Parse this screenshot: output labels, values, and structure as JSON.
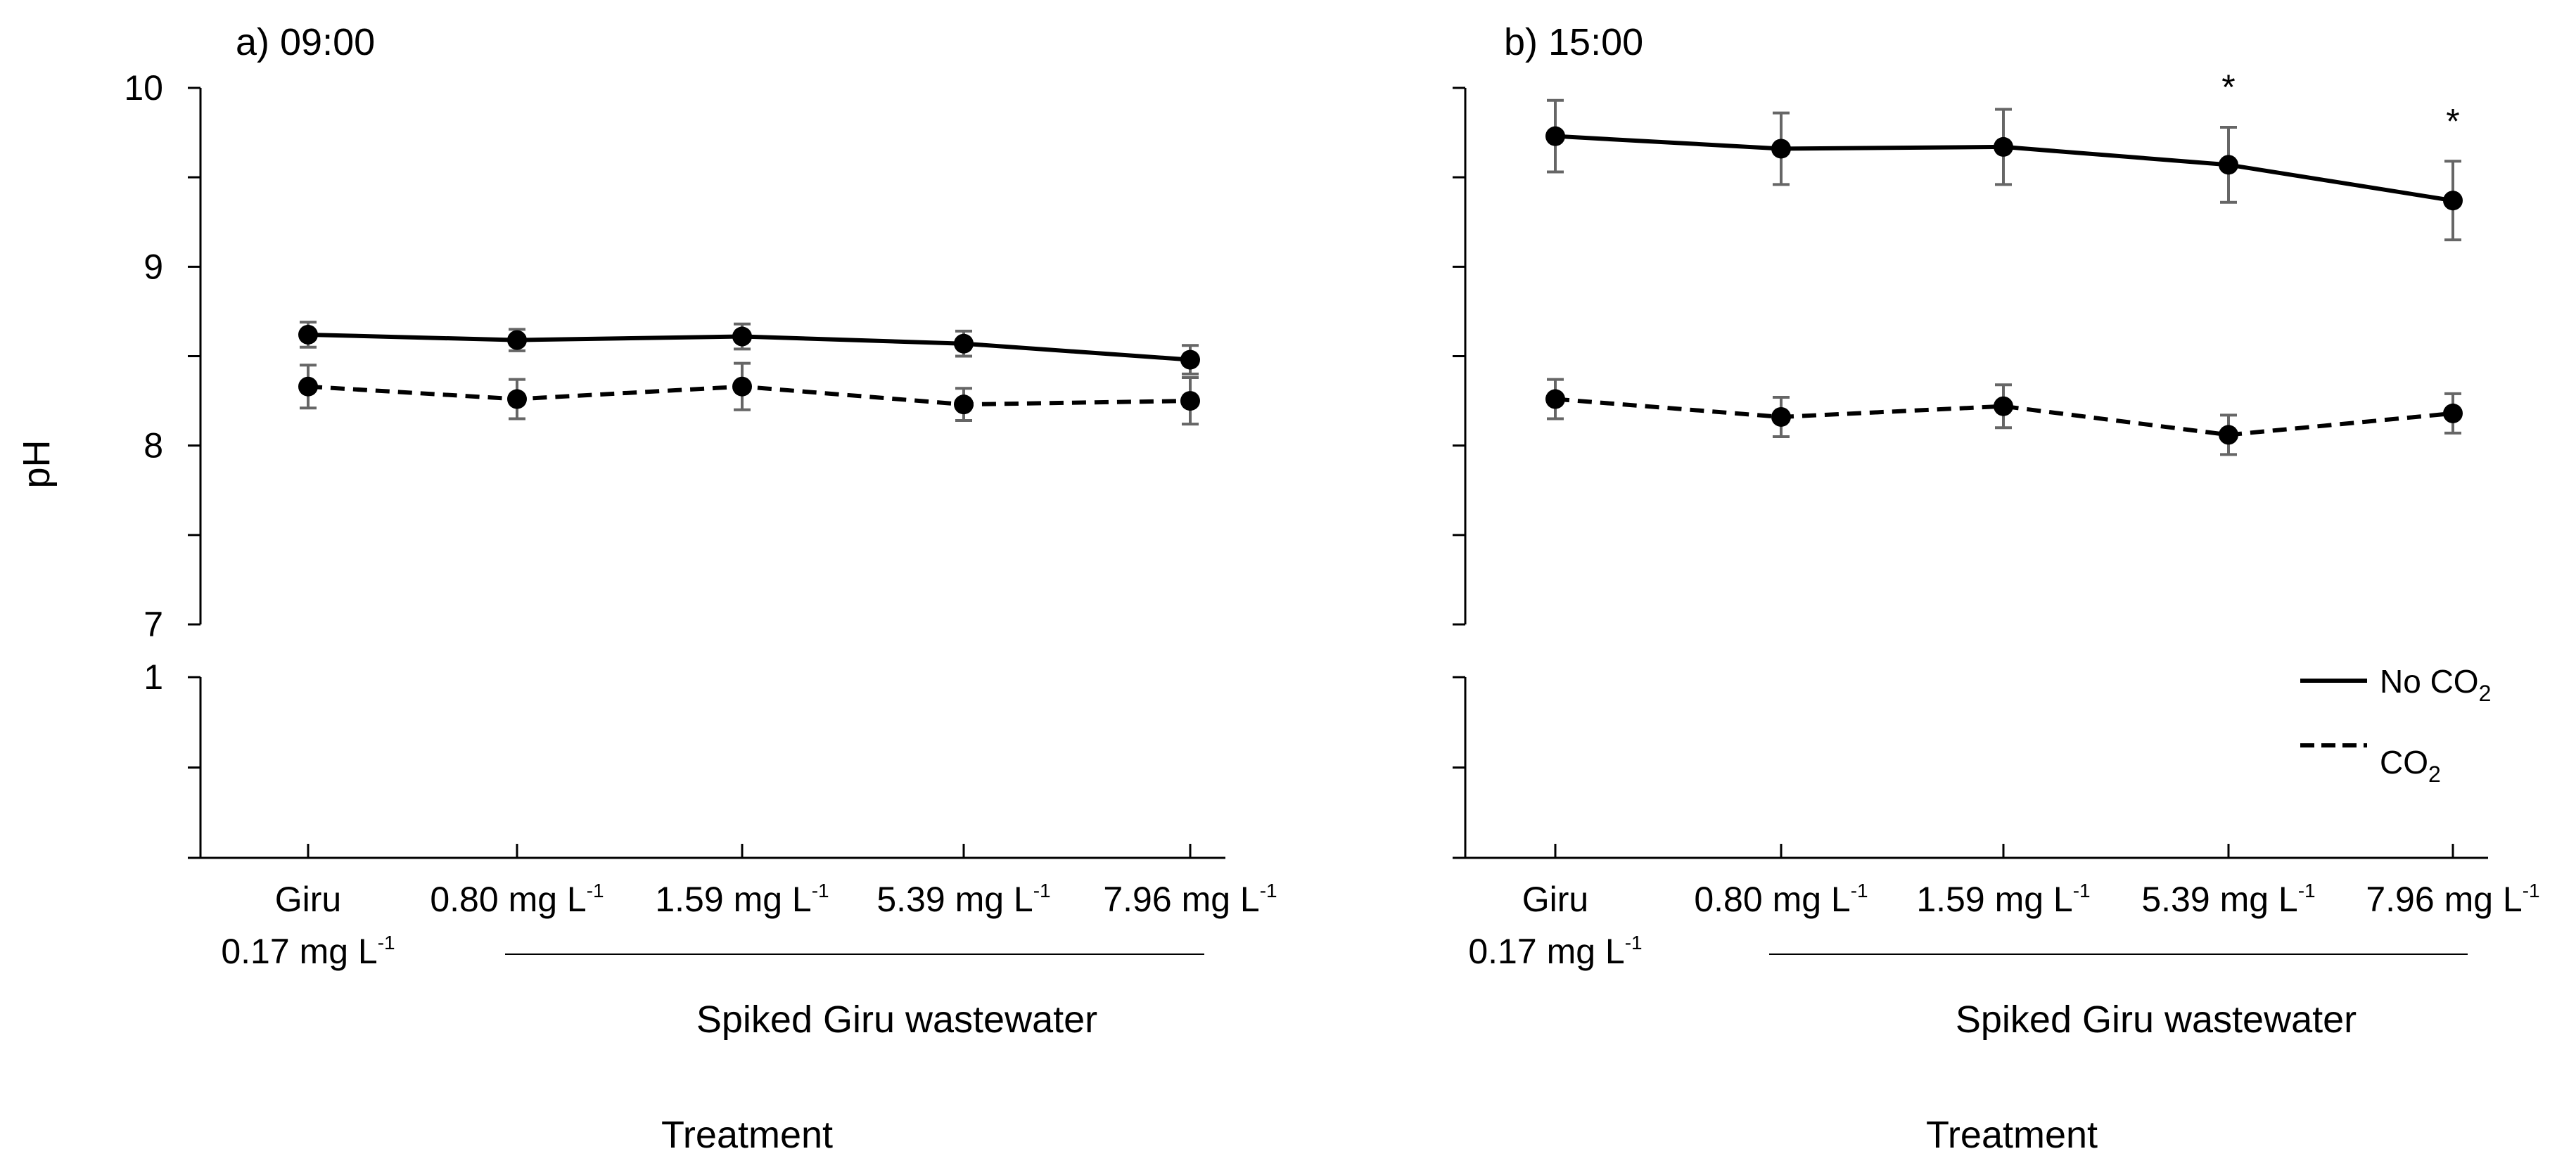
{
  "chart_data": {
    "type": "line",
    "ylabel": "pH",
    "shared_xlabel": "Treatment",
    "x_group_label": "Spiked Giru wastewater",
    "legend": [
      {
        "name": "No CO2",
        "text": "No CO",
        "sub": "2",
        "style": "solid"
      },
      {
        "name": "CO2",
        "text": "CO",
        "sub": "2",
        "style": "dashed"
      }
    ],
    "y_axis": {
      "segments": [
        {
          "range": [
            7,
            10
          ],
          "ticks": [
            7,
            7.5,
            8,
            8.5,
            9,
            9.5,
            10
          ],
          "labels": [
            "7",
            "8",
            "9",
            "10"
          ]
        },
        {
          "range": [
            0,
            1
          ],
          "ticks": [
            0,
            0.5,
            1
          ],
          "labels": [
            "1"
          ]
        }
      ]
    },
    "categories": [
      {
        "line1": "Giru",
        "line2": "0.17 mg L",
        "sup2": "-1"
      },
      {
        "line1": "0.80 mg L",
        "sup1": "-1"
      },
      {
        "line1": "1.59 mg L",
        "sup1": "-1"
      },
      {
        "line1": "5.39 mg L",
        "sup1": "-1"
      },
      {
        "line1": "7.96 mg L",
        "sup1": "-1"
      }
    ],
    "panels": [
      {
        "title": "a) 09:00",
        "series": [
          {
            "name": "No CO2",
            "values": [
              8.62,
              8.59,
              8.61,
              8.57,
              8.48
            ],
            "errors": [
              0.07,
              0.06,
              0.07,
              0.07,
              0.08
            ]
          },
          {
            "name": "CO2",
            "values": [
              8.33,
              8.26,
              8.33,
              8.23,
              8.25
            ],
            "errors": [
              0.12,
              0.11,
              0.13,
              0.09,
              0.13
            ]
          }
        ],
        "significance": [
          "",
          "",
          "",
          "",
          ""
        ]
      },
      {
        "title": "b) 15:00",
        "series": [
          {
            "name": "No CO2",
            "values": [
              9.73,
              9.66,
              9.67,
              9.57,
              9.37
            ],
            "errors": [
              0.2,
              0.2,
              0.21,
              0.21,
              0.22
            ]
          },
          {
            "name": "CO2",
            "values": [
              8.26,
              8.16,
              8.22,
              8.06,
              8.18
            ],
            "errors": [
              0.11,
              0.11,
              0.12,
              0.11,
              0.11
            ]
          }
        ],
        "significance": [
          "",
          "",
          "",
          "*",
          "*"
        ]
      }
    ]
  }
}
